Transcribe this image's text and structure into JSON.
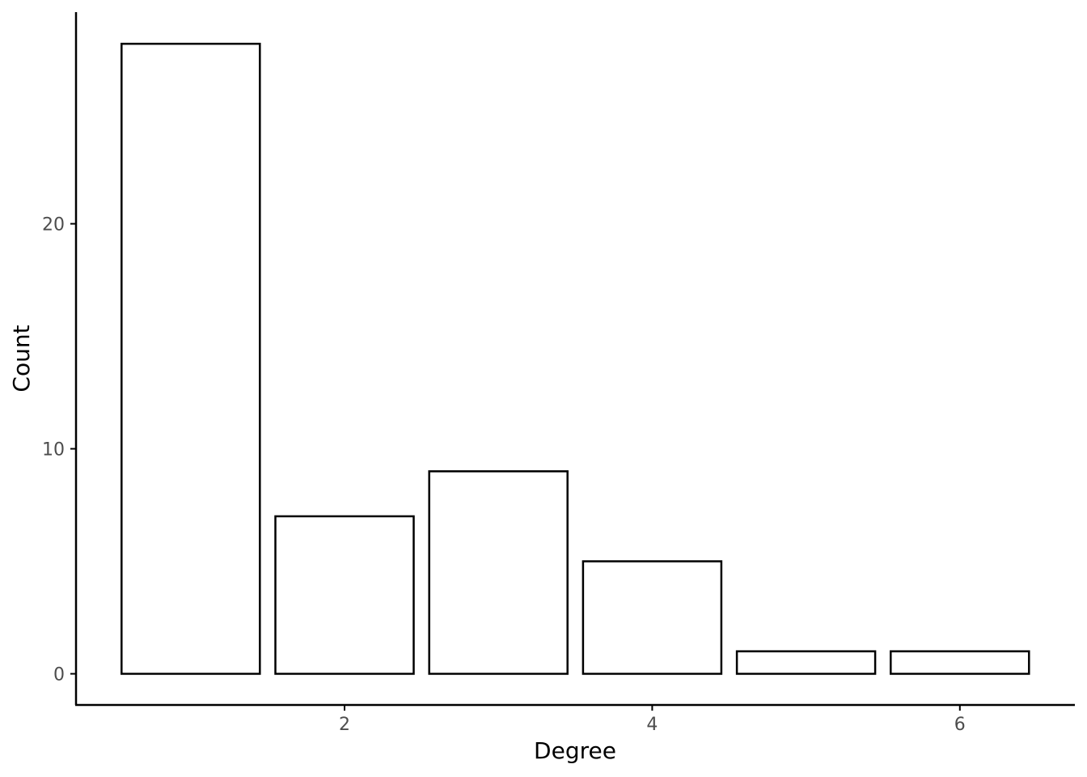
{
  "chart_data": {
    "type": "bar",
    "x": [
      1,
      2,
      3,
      4,
      5,
      6
    ],
    "values": [
      28,
      7,
      9,
      5,
      1,
      1
    ],
    "xlabel": "Degree",
    "ylabel": "Count",
    "xticks": [
      "2",
      "4",
      "6"
    ],
    "yticks": [
      "0",
      "10",
      "20"
    ],
    "xlim": [
      0.5,
      6.5
    ],
    "ylim": [
      0,
      28
    ],
    "bar_fill": "#ffffff",
    "bar_stroke": "#000000",
    "grid": false
  }
}
